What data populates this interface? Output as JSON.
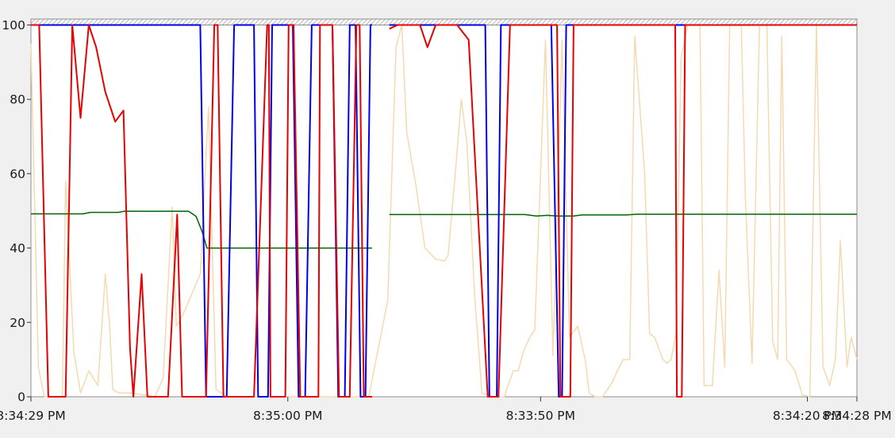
{
  "chart_data": {
    "type": "line",
    "ylim": [
      0,
      100
    ],
    "xlim": [
      0,
      100
    ],
    "grid": false,
    "legend": "none",
    "title": "",
    "xlabel": "",
    "ylabel": "",
    "y_ticks": [
      0,
      20,
      40,
      60,
      80,
      100
    ],
    "x_ticks": [
      {
        "x": 0.0,
        "label": "8:34:29 PM"
      },
      {
        "x": 31.1,
        "label": "8:35:00 PM"
      },
      {
        "x": 61.7,
        "label": "8:33:50 PM"
      },
      {
        "x": 94.0,
        "label": "8:34:20 PM"
      },
      {
        "x": 100.0,
        "label": "8:34:28 PM"
      }
    ],
    "top_band": {
      "from": 100,
      "to": 101.6,
      "color": "#c8c8c8"
    },
    "series": [
      {
        "color": "#f5d9b0",
        "width": 1.5,
        "points": [
          [
            0,
            95
          ],
          [
            0.9,
            8
          ],
          [
            1.6,
            0
          ],
          [
            3.8,
            0
          ],
          [
            4.2,
            58
          ],
          [
            5.2,
            12
          ],
          [
            6.0,
            1
          ],
          [
            7.0,
            7
          ],
          [
            8.1,
            3
          ],
          [
            9.0,
            33
          ],
          [
            9.5,
            20
          ],
          [
            9.9,
            2
          ],
          [
            10.6,
            1
          ],
          [
            11.3,
            1
          ],
          [
            12.1,
            1
          ],
          [
            13.7,
            0.5
          ],
          [
            14.4,
            0.3
          ],
          [
            15.0,
            0
          ],
          [
            16.0,
            5
          ],
          [
            17.1,
            51
          ],
          [
            17.6,
            19
          ],
          [
            18.4,
            22
          ],
          [
            20.5,
            33
          ],
          [
            21.5,
            78
          ],
          [
            22.4,
            2
          ],
          [
            23.7,
            0
          ],
          [
            24.9,
            0
          ],
          [
            26.0,
            0
          ],
          [
            27.8,
            0
          ],
          [
            29.5,
            0
          ],
          [
            30.9,
            0
          ],
          [
            32.9,
            0
          ],
          [
            34.3,
            0
          ],
          [
            36.0,
            0
          ],
          [
            37.4,
            0
          ],
          [
            39.0,
            0
          ],
          [
            40.9,
            0
          ],
          [
            43.2,
            26
          ],
          [
            44.2,
            94
          ],
          [
            44.9,
            100
          ],
          [
            45.5,
            71
          ],
          [
            46.6,
            57
          ],
          [
            47.7,
            40
          ],
          [
            49.0,
            37
          ],
          [
            50.1,
            36.5
          ],
          [
            50.5,
            38
          ],
          [
            51.3,
            58
          ],
          [
            52.1,
            80
          ],
          [
            52.8,
            68
          ],
          [
            53.7,
            28
          ],
          [
            54.6,
            1
          ],
          [
            56.0,
            0
          ],
          [
            57.3,
            0
          ],
          [
            58.4,
            7
          ],
          [
            59.0,
            7
          ],
          [
            59.6,
            12
          ],
          [
            60.4,
            16
          ],
          [
            61.0,
            18
          ],
          [
            62.3,
            96
          ],
          [
            63.2,
            11
          ],
          [
            64.3,
            96
          ],
          [
            65.2,
            16
          ],
          [
            66.2,
            19
          ],
          [
            67.1,
            10
          ],
          [
            67.6,
            1
          ],
          [
            68.3,
            0
          ],
          [
            69.2,
            0
          ],
          [
            70.4,
            4
          ],
          [
            71.0,
            7
          ],
          [
            71.7,
            10
          ],
          [
            72.5,
            10
          ],
          [
            73.1,
            97
          ],
          [
            74.3,
            60
          ],
          [
            74.9,
            17
          ],
          [
            75.5,
            16
          ],
          [
            76.5,
            10
          ],
          [
            77.0,
            9
          ],
          [
            77.5,
            10
          ],
          [
            78.1,
            17
          ],
          [
            78.7,
            91
          ],
          [
            79.5,
            100
          ],
          [
            80.2,
            100
          ],
          [
            81.0,
            100
          ],
          [
            81.5,
            3
          ],
          [
            82.5,
            3
          ],
          [
            83.3,
            34
          ],
          [
            84.0,
            8
          ],
          [
            84.6,
            100
          ],
          [
            85.3,
            100
          ],
          [
            86.0,
            100
          ],
          [
            86.5,
            53
          ],
          [
            87.3,
            9
          ],
          [
            88.2,
            100
          ],
          [
            89.1,
            100
          ],
          [
            89.8,
            15
          ],
          [
            90.4,
            10
          ],
          [
            90.9,
            97
          ],
          [
            91.5,
            10
          ],
          [
            92.5,
            7
          ],
          [
            93.4,
            0.5
          ],
          [
            94.3,
            0
          ],
          [
            95.1,
            100
          ],
          [
            95.9,
            8
          ],
          [
            96.7,
            3
          ],
          [
            97.4,
            10
          ],
          [
            98.0,
            42
          ],
          [
            98.8,
            8
          ],
          [
            99.3,
            16
          ],
          [
            100,
            10
          ]
        ]
      },
      {
        "color": "#006400",
        "width": 1.5,
        "points": [
          [
            0,
            49.2
          ],
          [
            6.3,
            49.2
          ],
          [
            7.2,
            49.6
          ],
          [
            10.6,
            49.6
          ],
          [
            11.3,
            49.9
          ],
          [
            19.1,
            49.9
          ],
          [
            20.0,
            48.5
          ],
          [
            20.8,
            44
          ],
          [
            21.3,
            40
          ],
          [
            41.3,
            40
          ],
          null,
          [
            43.4,
            49
          ],
          [
            59.8,
            49
          ],
          [
            61.2,
            48.6
          ],
          [
            62.5,
            48.8
          ],
          [
            63.8,
            48.6
          ],
          [
            65.7,
            48.6
          ],
          [
            66.7,
            48.9
          ],
          [
            72.0,
            48.9
          ],
          [
            73.4,
            49.1
          ],
          [
            100,
            49.1
          ]
        ]
      },
      {
        "color": "#0000e6",
        "width": 2,
        "points": [
          [
            0,
            100
          ],
          [
            20.5,
            100
          ],
          [
            21.2,
            0
          ],
          [
            23.7,
            0
          ],
          [
            24.6,
            100
          ],
          [
            27.0,
            100
          ],
          [
            27.5,
            0
          ],
          [
            28.7,
            0
          ],
          [
            29.2,
            100
          ],
          [
            31.7,
            100
          ],
          [
            32.4,
            0
          ],
          [
            33.2,
            0
          ],
          [
            34.0,
            100
          ],
          [
            36.5,
            100
          ],
          [
            37.2,
            0
          ],
          [
            38.0,
            0
          ],
          [
            38.6,
            100
          ],
          [
            39.3,
            100
          ],
          [
            39.9,
            0
          ],
          [
            40.5,
            0
          ],
          [
            41.1,
            100
          ],
          [
            41.3,
            100
          ],
          null,
          [
            43.4,
            100
          ],
          [
            55.0,
            100
          ],
          [
            55.5,
            0
          ],
          [
            56.4,
            0
          ],
          [
            56.9,
            100
          ],
          [
            63.0,
            100
          ],
          [
            63.9,
            0
          ],
          [
            64.3,
            0
          ],
          [
            64.8,
            100
          ],
          [
            100,
            100
          ]
        ]
      },
      {
        "color": "#e60000",
        "width": 2,
        "points": [
          [
            0,
            100
          ],
          [
            1.0,
            100
          ],
          [
            2.1,
            0
          ],
          [
            4.2,
            0
          ],
          [
            5.0,
            100
          ],
          [
            6.0,
            75
          ],
          [
            7.0,
            100
          ],
          [
            7.9,
            94
          ],
          [
            9.0,
            82
          ],
          [
            10.2,
            74
          ],
          [
            11.2,
            77
          ],
          [
            12.0,
            13
          ],
          [
            12.4,
            0
          ],
          [
            13.4,
            33
          ],
          [
            14.1,
            0
          ],
          [
            16.6,
            0
          ],
          [
            17.7,
            49
          ],
          [
            18.3,
            0
          ],
          [
            21.2,
            0
          ],
          [
            22.2,
            100
          ],
          [
            22.6,
            100
          ],
          [
            23.3,
            0
          ],
          [
            27.0,
            0
          ],
          [
            28.6,
            100
          ],
          [
            28.8,
            100
          ],
          [
            29.0,
            0
          ],
          [
            30.8,
            0
          ],
          [
            31.2,
            100
          ],
          [
            31.8,
            100
          ],
          [
            32.6,
            0
          ],
          [
            34.8,
            0
          ],
          [
            35.0,
            100
          ],
          [
            36.5,
            100
          ],
          [
            37.3,
            0
          ],
          [
            38.6,
            0
          ],
          [
            39.4,
            100
          ],
          [
            39.8,
            100
          ],
          [
            40.3,
            0
          ],
          [
            41.3,
            0
          ],
          null,
          [
            43.4,
            99
          ],
          [
            44.4,
            100
          ],
          [
            46.6,
            100
          ],
          [
            47.1,
            100
          ],
          [
            48.0,
            94
          ],
          [
            49.0,
            100
          ],
          [
            50.0,
            100
          ],
          [
            51.6,
            100
          ],
          [
            53.0,
            96
          ],
          [
            55.3,
            0
          ],
          [
            56.6,
            0
          ],
          [
            58.0,
            100
          ],
          [
            58.7,
            100
          ],
          [
            59.9,
            100
          ],
          [
            60.8,
            100
          ],
          [
            61.5,
            100
          ],
          [
            62.8,
            100
          ],
          [
            63.7,
            100
          ],
          [
            64.1,
            0
          ],
          [
            65.3,
            0
          ],
          [
            65.7,
            100
          ],
          [
            68.8,
            100
          ],
          [
            70.4,
            100
          ],
          [
            77.0,
            100
          ],
          [
            78.0,
            100
          ],
          [
            78.2,
            0
          ],
          [
            78.8,
            0
          ],
          [
            79.2,
            100
          ],
          [
            100,
            100
          ]
        ]
      }
    ]
  }
}
